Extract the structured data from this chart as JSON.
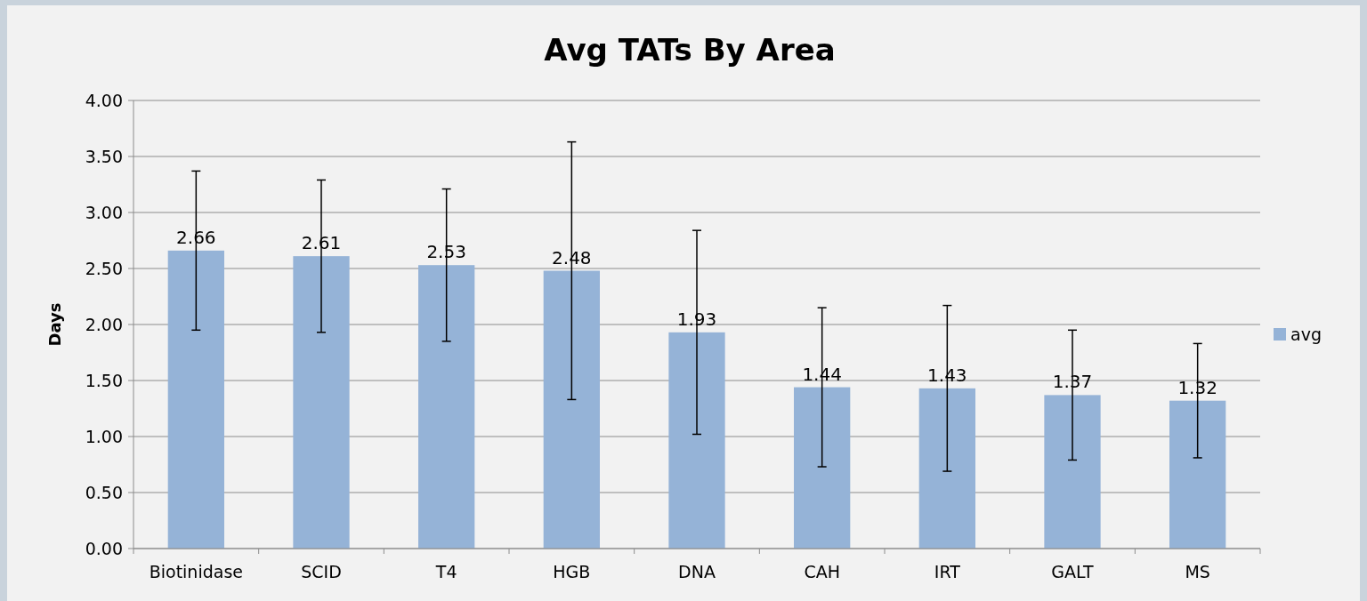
{
  "chart_data": {
    "type": "bar",
    "title": "Avg TATs By Area",
    "ylabel": "Days",
    "categories": [
      "Biotinidase",
      "SCID",
      "T4",
      "HGB",
      "DNA",
      "CAH",
      "IRT",
      "GALT",
      "MS"
    ],
    "series": [
      {
        "name": "avg",
        "color": "#95b3d7",
        "values": [
          2.66,
          2.61,
          2.53,
          2.48,
          1.93,
          1.44,
          1.43,
          1.37,
          1.32
        ],
        "errors": [
          0.71,
          0.68,
          0.68,
          1.15,
          0.91,
          0.71,
          0.74,
          0.58,
          0.51
        ]
      }
    ],
    "ylim": [
      0,
      4
    ],
    "yticks": [
      {
        "value": 0,
        "label": "0.00"
      },
      {
        "value": 0.5,
        "label": "0.50"
      },
      {
        "value": 1,
        "label": "1.00"
      },
      {
        "value": 1.5,
        "label": "1.50"
      },
      {
        "value": 2,
        "label": "2.00"
      },
      {
        "value": 2.5,
        "label": "2.50"
      },
      {
        "value": 3,
        "label": "3.00"
      },
      {
        "value": 3.5,
        "label": "3.50"
      },
      {
        "value": 4,
        "label": "4.00"
      }
    ],
    "grid": "y",
    "legend": "right",
    "data_labels": true
  }
}
